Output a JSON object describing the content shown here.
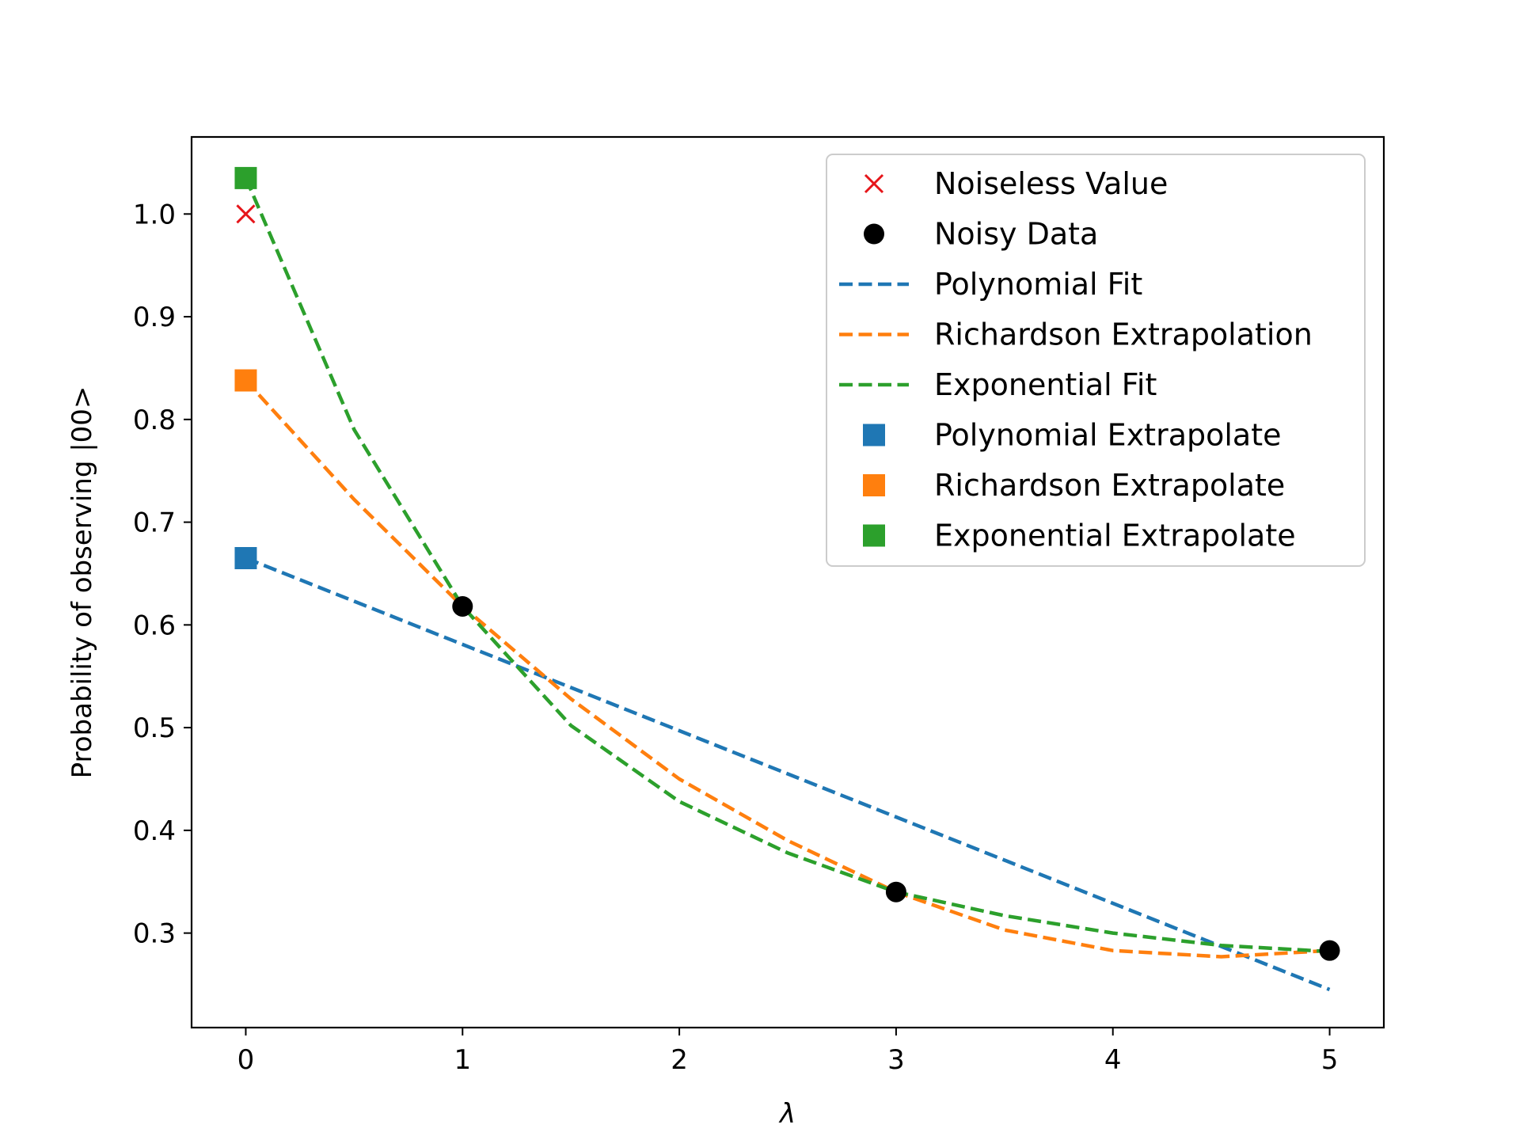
{
  "chart_data": {
    "type": "line",
    "xlabel": "λ",
    "ylabel": "Probability of observing |00>",
    "xlim": [
      -0.25,
      5.25
    ],
    "ylim": [
      0.208,
      1.075
    ],
    "xticks": [
      0,
      1,
      2,
      3,
      4,
      5
    ],
    "yticks": [
      0.3,
      0.4,
      0.5,
      0.6,
      0.7,
      0.8,
      0.9,
      1.0
    ],
    "xtick_labels": [
      "0",
      "1",
      "2",
      "3",
      "4",
      "5"
    ],
    "ytick_labels": [
      "0.3",
      "0.4",
      "0.5",
      "0.6",
      "0.7",
      "0.8",
      "0.9",
      "1.0"
    ],
    "grid": false,
    "legend_position": "top-right",
    "series": [
      {
        "name": "Noiseless Value",
        "kind": "marker",
        "marker": "x",
        "color": "#e6151a",
        "x": [
          0
        ],
        "y": [
          1.0
        ]
      },
      {
        "name": "Noisy Data",
        "kind": "marker",
        "marker": "circle",
        "color": "#000000",
        "x": [
          1,
          3,
          5
        ],
        "y": [
          0.618,
          0.34,
          0.283
        ]
      },
      {
        "name": "Polynomial Fit",
        "kind": "dashed-line",
        "color": "#1f77b4",
        "x": [
          0,
          0.5,
          1,
          1.5,
          2,
          2.5,
          3,
          3.5,
          4,
          4.5,
          5
        ],
        "y": [
          0.665,
          0.623,
          0.581,
          0.539,
          0.497,
          0.455,
          0.413,
          0.371,
          0.329,
          0.287,
          0.245
        ]
      },
      {
        "name": "Richardson Extrapolation",
        "kind": "dashed-line",
        "color": "#ff7f0e",
        "x": [
          0,
          0.5,
          1,
          1.5,
          2,
          2.5,
          3,
          3.5,
          4,
          4.5,
          5
        ],
        "y": [
          0.838,
          0.722,
          0.618,
          0.528,
          0.45,
          0.39,
          0.34,
          0.303,
          0.283,
          0.277,
          0.283
        ]
      },
      {
        "name": "Exponential Fit",
        "kind": "dashed-line",
        "color": "#2ca02c",
        "x": [
          0,
          0.5,
          1,
          1.5,
          2,
          2.5,
          3,
          3.5,
          4,
          4.5,
          5
        ],
        "y": [
          1.035,
          0.79,
          0.618,
          0.502,
          0.428,
          0.378,
          0.34,
          0.317,
          0.3,
          0.288,
          0.282
        ]
      },
      {
        "name": "Polynomial Extrapolate",
        "kind": "marker",
        "marker": "square",
        "color": "#1f77b4",
        "x": [
          0
        ],
        "y": [
          0.665
        ]
      },
      {
        "name": "Richardson Extrapolate",
        "kind": "marker",
        "marker": "square",
        "color": "#ff7f0e",
        "x": [
          0
        ],
        "y": [
          0.838
        ]
      },
      {
        "name": "Exponential Extrapolate",
        "kind": "marker",
        "marker": "square",
        "color": "#2ca02c",
        "x": [
          0
        ],
        "y": [
          1.035
        ]
      }
    ]
  }
}
